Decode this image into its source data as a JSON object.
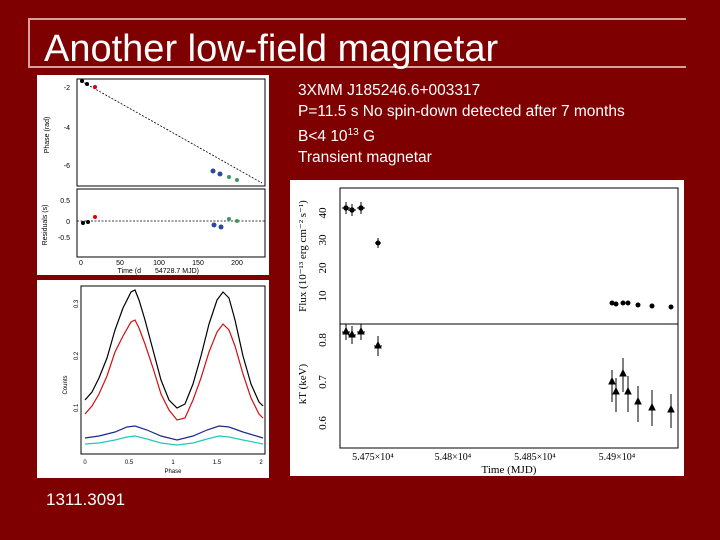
{
  "slide": {
    "title": "Another low-field magnetar",
    "bullets": {
      "line1": "3XMM J185246.6+003317",
      "line2": "P=11.5 s No spin-down detected after 7 months",
      "line3_prefix": "B<4 10",
      "line3_exp": "13",
      "line3_suffix": " G",
      "line4": "Transient magnetar"
    },
    "footer": "1311.3091"
  },
  "phase_plot": {
    "top_ylabel": "Phase (rad)",
    "top_yticks": [
      "-2",
      "-4",
      "-6"
    ],
    "bottom_ylabel": "Residuals (s)",
    "bottom_yticks": [
      "0.5",
      "0",
      "-0.5"
    ],
    "xticks": [
      "0",
      "50",
      "100",
      "150",
      "200"
    ],
    "xlabel": "Time (d",
    "xlabel2": "54728.7 MJD)"
  },
  "pulse_plot": {
    "ylabel": "Counts",
    "yticks": [
      "0.3",
      "0.2",
      "0.1"
    ],
    "xticks": [
      "0",
      "0.5",
      "1",
      "1.5",
      "2"
    ],
    "xlabel": "Phase"
  },
  "flux_plot": {
    "top_ylabel": "Flux (10⁻¹³ erg cm⁻² s⁻¹)",
    "top_yticks": [
      "40",
      "30",
      "20",
      "10"
    ],
    "bottom_ylabel": "kT (keV)",
    "bottom_yticks": [
      "0.8",
      "0.7",
      "0.6"
    ],
    "xticks": [
      "5.475×10⁴",
      "5.48×10⁴",
      "5.485×10⁴",
      "5.49×10⁴"
    ],
    "xlabel": "Time (MJD)"
  }
}
